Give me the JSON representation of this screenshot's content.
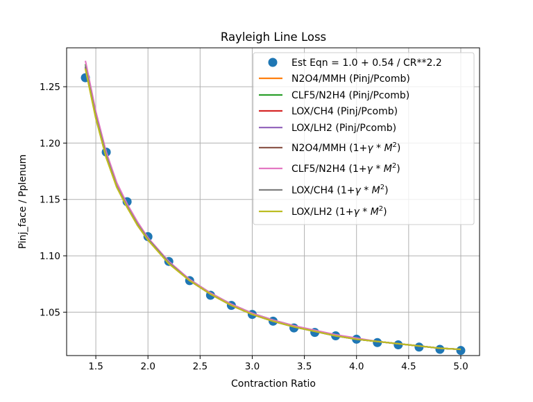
{
  "chart_data": {
    "type": "line",
    "title": "Rayleigh Line Loss",
    "xlabel": "Contraction Ratio",
    "ylabel": "Pinj_face / Pplenum",
    "xlim": [
      1.22,
      5.18
    ],
    "ylim": [
      1.0115,
      1.2845
    ],
    "xticks": [
      1.5,
      2.0,
      2.5,
      3.0,
      3.5,
      4.0,
      4.5,
      5.0
    ],
    "xtick_labels": [
      "1.5",
      "2.0",
      "2.5",
      "3.0",
      "3.5",
      "4.0",
      "4.5",
      "5.0"
    ],
    "yticks": [
      1.05,
      1.1,
      1.15,
      1.2,
      1.25
    ],
    "ytick_labels": [
      "1.05",
      "1.10",
      "1.15",
      "1.20",
      "1.25"
    ],
    "grid": true,
    "legend_placement": "upper right",
    "estimate": {
      "name": "Est Eqn = 1.0 + 0.54 / CR**2.2",
      "marker": "circle",
      "color": "#1f77b4",
      "x": [
        1.4,
        1.6,
        1.8,
        2.0,
        2.2,
        2.4,
        2.6,
        2.8,
        3.0,
        3.2,
        3.4,
        3.6,
        3.8,
        4.0,
        4.2,
        4.4,
        4.6,
        4.8,
        5.0
      ],
      "y": [
        1.258,
        1.192,
        1.148,
        1.117,
        1.095,
        1.078,
        1.065,
        1.056,
        1.048,
        1.042,
        1.036,
        1.032,
        1.029,
        1.026,
        1.023,
        1.021,
        1.019,
        1.017,
        1.016
      ]
    },
    "curve_x": [
      1.4,
      1.5,
      1.6,
      1.7,
      1.8,
      1.9,
      2.0,
      2.2,
      2.4,
      2.6,
      2.8,
      3.0,
      3.2,
      3.4,
      3.6,
      3.8,
      4.0,
      4.2,
      4.4,
      4.6,
      4.8,
      5.0
    ],
    "series": [
      {
        "name": "N2O4/MMH (Pinj/Pcomb)",
        "color": "#ff7f0e",
        "values": [
          1.266,
          1.222,
          1.187,
          1.161,
          1.143,
          1.127,
          1.114,
          1.093,
          1.078,
          1.066,
          1.056,
          1.048,
          1.042,
          1.037,
          1.033,
          1.029,
          1.026,
          1.024,
          1.022,
          1.02,
          1.018,
          1.017
        ]
      },
      {
        "name": "CLF5/N2H4 (Pinj/Pcomb)",
        "color": "#2ca02c",
        "values": [
          1.27,
          1.225,
          1.19,
          1.163,
          1.145,
          1.128,
          1.115,
          1.094,
          1.079,
          1.067,
          1.057,
          1.049,
          1.043,
          1.038,
          1.033,
          1.03,
          1.026,
          1.024,
          1.022,
          1.02,
          1.018,
          1.017
        ]
      },
      {
        "name": "LOX/CH4 (Pinj/Pcomb)",
        "color": "#d62728",
        "values": [
          1.267,
          1.223,
          1.188,
          1.162,
          1.144,
          1.127,
          1.114,
          1.094,
          1.078,
          1.066,
          1.056,
          1.048,
          1.042,
          1.037,
          1.033,
          1.029,
          1.026,
          1.024,
          1.022,
          1.02,
          1.018,
          1.017
        ]
      },
      {
        "name": "LOX/LH2 (Pinj/Pcomb)",
        "color": "#9467bd",
        "values": [
          1.268,
          1.224,
          1.189,
          1.162,
          1.144,
          1.128,
          1.115,
          1.094,
          1.078,
          1.066,
          1.057,
          1.049,
          1.042,
          1.037,
          1.033,
          1.029,
          1.026,
          1.024,
          1.022,
          1.02,
          1.018,
          1.017
        ]
      },
      {
        "name": "N2O4/MMH (1+γ*M²)",
        "color": "#8c564b",
        "values": [
          1.268,
          1.224,
          1.189,
          1.162,
          1.144,
          1.128,
          1.115,
          1.094,
          1.078,
          1.066,
          1.057,
          1.049,
          1.042,
          1.037,
          1.033,
          1.029,
          1.026,
          1.024,
          1.022,
          1.02,
          1.018,
          1.017
        ]
      },
      {
        "name": "CLF5/N2H4 (1+γ*M²)",
        "color": "#e377c2",
        "values": [
          1.273,
          1.228,
          1.192,
          1.165,
          1.146,
          1.13,
          1.116,
          1.095,
          1.079,
          1.067,
          1.057,
          1.049,
          1.043,
          1.038,
          1.034,
          1.03,
          1.027,
          1.024,
          1.022,
          1.02,
          1.018,
          1.017
        ]
      },
      {
        "name": "LOX/CH4 (1+γ*M²)",
        "color": "#7f7f7f",
        "values": [
          1.268,
          1.224,
          1.189,
          1.162,
          1.144,
          1.128,
          1.115,
          1.094,
          1.078,
          1.066,
          1.056,
          1.048,
          1.042,
          1.037,
          1.033,
          1.029,
          1.026,
          1.024,
          1.022,
          1.02,
          1.018,
          1.017
        ]
      },
      {
        "name": "LOX/LH2 (1+γ*M²)",
        "color": "#bcbd22",
        "values": [
          1.266,
          1.222,
          1.187,
          1.161,
          1.143,
          1.127,
          1.114,
          1.093,
          1.078,
          1.066,
          1.056,
          1.048,
          1.042,
          1.037,
          1.033,
          1.029,
          1.026,
          1.024,
          1.022,
          1.02,
          1.018,
          1.017
        ]
      }
    ],
    "legend_entries": [
      {
        "text": "Est Eqn = 1.0 + 0.54 / CR**2.2",
        "math": false,
        "prefix": "",
        "base": "",
        "sup": "",
        "suffix": ""
      },
      {
        "text": "N2O4/MMH (Pinj/Pcomb)",
        "math": false,
        "prefix": "",
        "base": "",
        "sup": "",
        "suffix": ""
      },
      {
        "text": "CLF5/N2H4 (Pinj/Pcomb)",
        "math": false,
        "prefix": "",
        "base": "",
        "sup": "",
        "suffix": ""
      },
      {
        "text": "LOX/CH4 (Pinj/Pcomb)",
        "math": false,
        "prefix": "",
        "base": "",
        "sup": "",
        "suffix": ""
      },
      {
        "text": "LOX/LH2 (Pinj/Pcomb)",
        "math": false,
        "prefix": "",
        "base": "",
        "sup": "",
        "suffix": ""
      },
      {
        "text": "",
        "math": true,
        "prefix": "N2O4/MMH (1+",
        "base": "γ * M",
        "sup": "2",
        "suffix": ")"
      },
      {
        "text": "",
        "math": true,
        "prefix": "CLF5/N2H4 (1+",
        "base": "γ * M",
        "sup": "2",
        "suffix": ")"
      },
      {
        "text": "",
        "math": true,
        "prefix": "LOX/CH4 (1+",
        "base": "γ * M",
        "sup": "2",
        "suffix": ")"
      },
      {
        "text": "",
        "math": true,
        "prefix": "LOX/LH2 (1+",
        "base": "γ * M",
        "sup": "2",
        "suffix": ")"
      }
    ]
  }
}
